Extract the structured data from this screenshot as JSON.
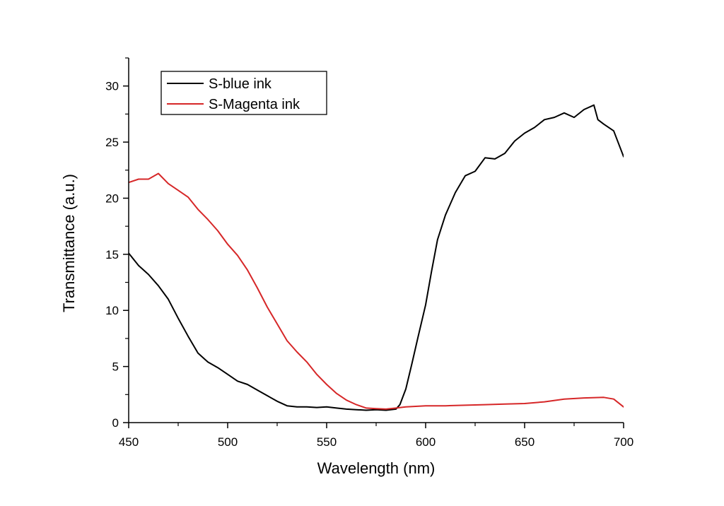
{
  "chart_data": {
    "type": "line",
    "title": "",
    "xlabel": "Wavelength (nm)",
    "ylabel": "Transmittance (a.u.)",
    "xlim": [
      450,
      700
    ],
    "ylim": [
      0,
      32.5
    ],
    "x_ticks": [
      450,
      500,
      550,
      600,
      650,
      700
    ],
    "y_ticks": [
      0,
      5,
      10,
      15,
      20,
      25,
      30
    ],
    "x_tick_labels": [
      "450",
      "500",
      "550",
      "600",
      "650",
      "700"
    ],
    "y_tick_labels": [
      "0",
      "5",
      "10",
      "15",
      "20",
      "25",
      "30"
    ],
    "grid": false,
    "legend": {
      "position": "top-left"
    },
    "series": [
      {
        "name": "S-blue ink",
        "color": "#000000",
        "x": [
          450,
          455,
          460,
          465,
          470,
          475,
          480,
          485,
          490,
          495,
          500,
          505,
          510,
          515,
          520,
          525,
          530,
          535,
          540,
          545,
          550,
          555,
          560,
          565,
          570,
          575,
          580,
          585,
          587,
          590,
          593,
          596,
          600,
          603,
          606,
          610,
          615,
          620,
          625,
          630,
          635,
          640,
          645,
          650,
          655,
          660,
          665,
          670,
          675,
          680,
          685,
          687,
          690,
          695,
          700
        ],
        "y": [
          15.1,
          14.0,
          13.2,
          12.2,
          11.0,
          9.3,
          7.7,
          6.2,
          5.4,
          4.9,
          4.3,
          3.7,
          3.4,
          2.9,
          2.4,
          1.9,
          1.5,
          1.4,
          1.4,
          1.35,
          1.4,
          1.3,
          1.2,
          1.15,
          1.1,
          1.15,
          1.1,
          1.2,
          1.6,
          3.0,
          5.2,
          7.5,
          10.5,
          13.5,
          16.3,
          18.5,
          20.5,
          22.0,
          22.4,
          23.6,
          23.5,
          24.0,
          25.1,
          25.8,
          26.3,
          27.0,
          27.2,
          27.6,
          27.2,
          27.9,
          28.3,
          27.0,
          26.6,
          26.0,
          23.7
        ]
      },
      {
        "name": "S-Magenta ink",
        "color": "#d62728",
        "x": [
          450,
          455,
          460,
          465,
          470,
          475,
          480,
          485,
          490,
          495,
          500,
          505,
          510,
          515,
          520,
          525,
          530,
          535,
          540,
          545,
          550,
          555,
          560,
          565,
          570,
          575,
          580,
          585,
          590,
          595,
          600,
          610,
          620,
          630,
          640,
          650,
          660,
          670,
          680,
          690,
          695,
          700
        ],
        "y": [
          21.4,
          21.7,
          21.7,
          22.2,
          21.3,
          20.7,
          20.1,
          19.0,
          18.1,
          17.1,
          15.9,
          14.9,
          13.6,
          12.0,
          10.3,
          8.8,
          7.3,
          6.3,
          5.4,
          4.3,
          3.4,
          2.6,
          2.0,
          1.6,
          1.3,
          1.25,
          1.2,
          1.3,
          1.4,
          1.45,
          1.5,
          1.5,
          1.55,
          1.6,
          1.65,
          1.7,
          1.85,
          2.1,
          2.2,
          2.25,
          2.1,
          1.4
        ]
      }
    ]
  }
}
